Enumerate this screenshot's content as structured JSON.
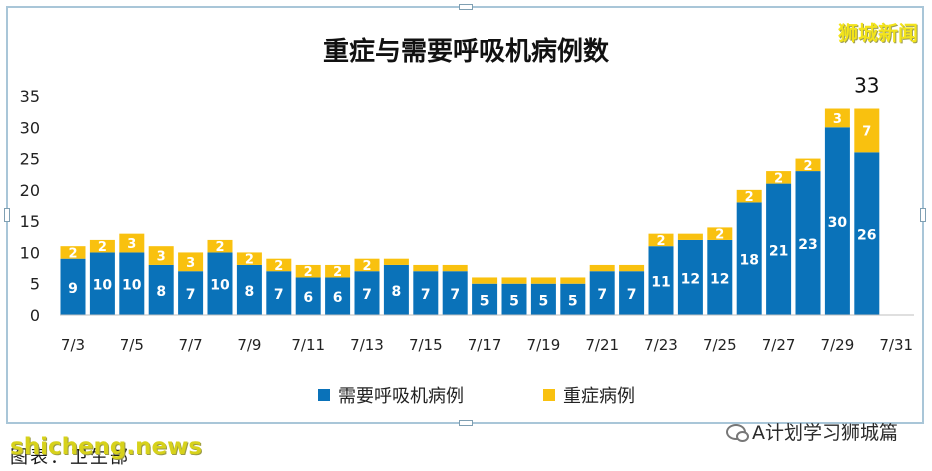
{
  "watermark_top": "狮城新闻",
  "watermark_bottom": "shicheng.news",
  "caption": "图表：卫生部",
  "wechat_label": "A计划学习狮城篇",
  "colors": {
    "ventilator": "#0a72b9",
    "severe": "#f9c10f",
    "title": "#111111",
    "axis": "#222222"
  },
  "chart_data": {
    "type": "bar",
    "stacked": true,
    "title": "重症与需要呼吸机病例数",
    "categories": [
      "7/3",
      "7/4",
      "7/5",
      "7/6",
      "7/7",
      "7/8",
      "7/9",
      "7/10",
      "7/11",
      "7/12",
      "7/13",
      "7/14",
      "7/15",
      "7/16",
      "7/17",
      "7/18",
      "7/19",
      "7/20",
      "7/21",
      "7/22",
      "7/23",
      "7/24",
      "7/25",
      "7/26",
      "7/27",
      "7/28",
      "7/29",
      "7/30"
    ],
    "x_tick_labels": [
      "7/3",
      "7/5",
      "7/7",
      "7/9",
      "7/11",
      "7/13",
      "7/15",
      "7/17",
      "7/19",
      "7/21",
      "7/23",
      "7/25",
      "7/27",
      "7/29",
      "7/31"
    ],
    "series": [
      {
        "name": "需要呼吸机病例",
        "values": [
          9,
          10,
          10,
          8,
          7,
          10,
          8,
          7,
          6,
          6,
          7,
          8,
          7,
          7,
          5,
          5,
          5,
          5,
          7,
          7,
          11,
          12,
          12,
          18,
          21,
          23,
          30,
          26
        ]
      },
      {
        "name": "重症病例",
        "values": [
          2,
          2,
          3,
          3,
          3,
          2,
          2,
          2,
          2,
          2,
          2,
          1,
          1,
          1,
          1,
          1,
          1,
          1,
          1,
          1,
          2,
          1,
          2,
          2,
          2,
          2,
          3,
          7
        ]
      }
    ],
    "labeled_severe": [
      true,
      true,
      true,
      true,
      true,
      true,
      true,
      true,
      true,
      true,
      true,
      false,
      false,
      false,
      false,
      false,
      false,
      false,
      false,
      false,
      true,
      false,
      true,
      true,
      true,
      true,
      true,
      true
    ],
    "annotations": [
      {
        "category": "7/30",
        "text": "33"
      }
    ],
    "yticks": [
      0,
      5,
      10,
      15,
      20,
      25,
      30,
      35
    ],
    "ylim": [
      0,
      35
    ],
    "legend_position": "bottom-center",
    "grid": false
  }
}
